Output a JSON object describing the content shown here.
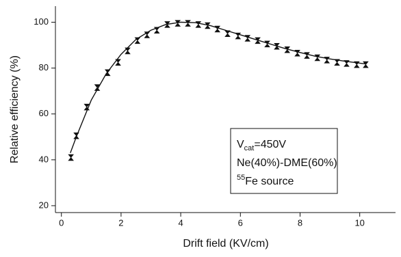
{
  "chart_data": {
    "type": "scatter",
    "xlabel": "Drift field (KV/cm)",
    "ylabel": "Relative efficiency (%)",
    "xlim": [
      -0.2,
      11.2
    ],
    "xticks": [
      0,
      2,
      4,
      6,
      8,
      10
    ],
    "ylim": [
      17,
      107
    ],
    "yticks": [
      20,
      40,
      60,
      80,
      100
    ],
    "color": "#111111",
    "x": [
      0.32,
      0.5,
      0.85,
      1.2,
      1.55,
      1.9,
      2.22,
      2.55,
      2.87,
      3.2,
      3.55,
      3.9,
      4.24,
      4.59,
      4.9,
      5.23,
      5.57,
      5.92,
      6.24,
      6.58,
      6.9,
      7.22,
      7.57,
      7.91,
      8.23,
      8.58,
      8.9,
      9.24,
      9.56,
      9.9,
      10.2
    ],
    "values": [
      41,
      50.5,
      63,
      71.5,
      78,
      82.5,
      87.5,
      92,
      94.5,
      96.5,
      99,
      99.5,
      99.5,
      99,
      98.5,
      97,
      95,
      94,
      93,
      92,
      90.5,
      89.5,
      88,
      86.5,
      85.5,
      84.5,
      83.5,
      82.5,
      82,
      81.5,
      81.5
    ],
    "errors": [
      1,
      1,
      1,
      1,
      1,
      1,
      1,
      1,
      1,
      1,
      1,
      1,
      1,
      1,
      1,
      1,
      1,
      1,
      1,
      1,
      1,
      1,
      1,
      1,
      1,
      1,
      1,
      1,
      1,
      1,
      1
    ],
    "fit": {
      "x": [
        0.3,
        0.5,
        1,
        1.5,
        2,
        2.5,
        3,
        3.5,
        4,
        4.5,
        5,
        5.5,
        6,
        6.5,
        7,
        7.5,
        8,
        8.5,
        9,
        9.5,
        10.2
      ],
      "values": [
        43,
        50,
        66,
        77.5,
        86,
        92.5,
        96.5,
        99,
        100,
        99.8,
        98.5,
        96.5,
        94.5,
        92.5,
        90.5,
        88.5,
        86.8,
        85.2,
        84,
        83,
        81.8
      ]
    },
    "annotation": {
      "line1": [
        "V",
        "cat",
        "=450V"
      ],
      "line2": "Ne(40%)-DME(60%)",
      "line3": [
        "55",
        "Fe source"
      ]
    }
  }
}
